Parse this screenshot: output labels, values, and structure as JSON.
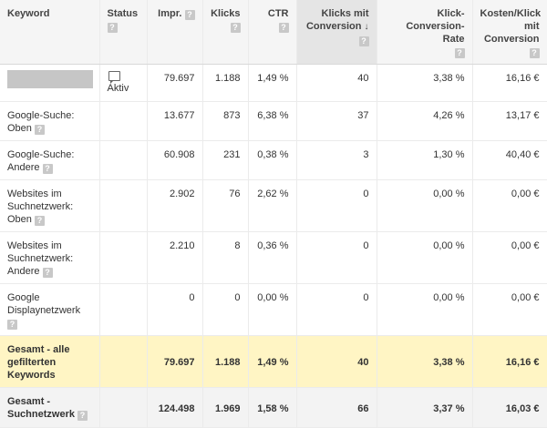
{
  "columns": [
    {
      "label": "Keyword",
      "help": false
    },
    {
      "label": "Status",
      "help": true
    },
    {
      "label": "Impr.",
      "help": true
    },
    {
      "label": "Klicks",
      "help": true
    },
    {
      "label": "CTR",
      "help": true
    },
    {
      "label": "Klicks mit Conversion",
      "help": true,
      "sorted": true,
      "sort_icon": "↓"
    },
    {
      "label": "Klick-Conversion-Rate",
      "help": true
    },
    {
      "label": "Kosten/Klick mit Conversion",
      "help": true
    }
  ],
  "help_glyph": "?",
  "rows": [
    {
      "keyword": "",
      "keyword_redacted": true,
      "status": "Aktiv",
      "status_icon": "speech-bubble-icon",
      "impr": "79.697",
      "klicks": "1.188",
      "ctr": "1,49 %",
      "klicks_conv": "40",
      "conv_rate": "3,38 %",
      "kosten": "16,16 €"
    },
    {
      "keyword": "Google-Suche: Oben",
      "help": true,
      "status": "",
      "impr": "13.677",
      "klicks": "873",
      "ctr": "6,38 %",
      "klicks_conv": "37",
      "conv_rate": "4,26 %",
      "kosten": "13,17 €"
    },
    {
      "keyword": "Google-Suche: Andere",
      "help": true,
      "status": "",
      "impr": "60.908",
      "klicks": "231",
      "ctr": "0,38 %",
      "klicks_conv": "3",
      "conv_rate": "1,30 %",
      "kosten": "40,40 €"
    },
    {
      "keyword": "Websites im Suchnetzwerk: Oben",
      "help": true,
      "status": "",
      "impr": "2.902",
      "klicks": "76",
      "ctr": "2,62 %",
      "klicks_conv": "0",
      "conv_rate": "0,00 %",
      "kosten": "0,00 €"
    },
    {
      "keyword": "Websites im Suchnetzwerk: Andere",
      "help": true,
      "status": "",
      "impr": "2.210",
      "klicks": "8",
      "ctr": "0,36 %",
      "klicks_conv": "0",
      "conv_rate": "0,00 %",
      "kosten": "0,00 €"
    },
    {
      "keyword": "Google Displaynetzwerk",
      "help": true,
      "status": "",
      "impr": "0",
      "klicks": "0",
      "ctr": "0,00 %",
      "klicks_conv": "0",
      "conv_rate": "0,00 %",
      "kosten": "0,00 €"
    }
  ],
  "totals": [
    {
      "keyword": "Gesamt - alle gefilterten Keywords",
      "help": false,
      "impr": "79.697",
      "klicks": "1.188",
      "ctr": "1,49 %",
      "klicks_conv": "40",
      "conv_rate": "3,38 %",
      "kosten": "16,16 €",
      "highlight": "#fff5c4"
    },
    {
      "keyword": "Gesamt - Suchnetzwerk",
      "help": true,
      "impr": "124.498",
      "klicks": "1.969",
      "ctr": "1,58 %",
      "klicks_conv": "66",
      "conv_rate": "3,37 %",
      "kosten": "16,03 €",
      "highlight": "#f3f3f3"
    }
  ]
}
